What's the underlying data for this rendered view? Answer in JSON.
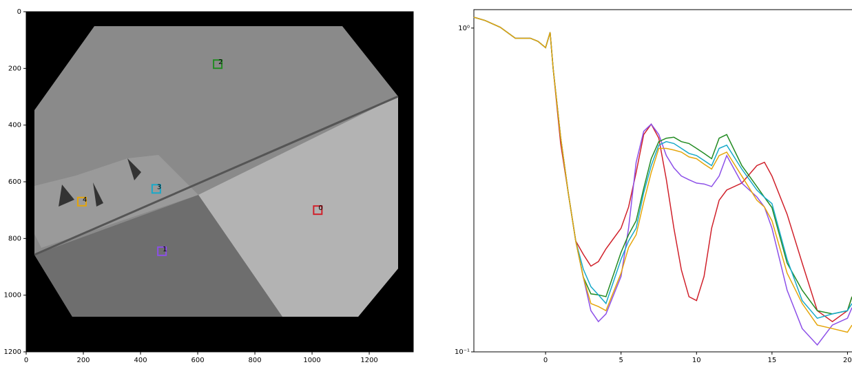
{
  "chart_data": [
    {
      "type": "image",
      "xlim": [
        0,
        1354
      ],
      "ylim": [
        1200,
        0
      ],
      "xticks": [
        0,
        200,
        400,
        600,
        800,
        1000,
        1200
      ],
      "yticks": [
        0,
        200,
        400,
        600,
        800,
        1000,
        1200
      ],
      "regions": [
        {
          "label": "0",
          "x": 1020,
          "y": 700,
          "color": "#d0202a"
        },
        {
          "label": "1",
          "x": 475,
          "y": 845,
          "color": "#8c4fe8"
        },
        {
          "label": "2",
          "x": 670,
          "y": 185,
          "color": "#228b22"
        },
        {
          "label": "3",
          "x": 455,
          "y": 625,
          "color": "#17a9c9"
        },
        {
          "label": "4",
          "x": 195,
          "y": 670,
          "color": "#e5a50a"
        }
      ]
    },
    {
      "type": "line",
      "yscale": "log",
      "xlim": [
        -4.75,
        20.3
      ],
      "ylim": [
        0.1,
        1.14
      ],
      "xticks": [
        0,
        5,
        10,
        15,
        20
      ],
      "yticks": [
        {
          "value": 0.1,
          "label": "10⁻¹"
        },
        {
          "value": 1,
          "label": "10⁰"
        }
      ],
      "x": [
        -4.75,
        -4,
        -3,
        -2,
        -1,
        -0.5,
        0,
        0.3,
        0.5,
        1,
        1.5,
        2,
        2.5,
        3,
        3.5,
        4,
        5,
        5.5,
        6,
        6.5,
        7,
        7.5,
        8,
        8.5,
        9,
        9.5,
        10,
        10.5,
        11,
        11.5,
        12,
        13,
        14,
        14.5,
        15,
        16,
        17,
        18,
        19,
        20,
        20.3
      ],
      "series": [
        {
          "color": "#d0202a",
          "values": [
            1.08,
            1.055,
            1.005,
            0.93,
            0.93,
            0.91,
            0.87,
            0.97,
            0.75,
            0.44,
            0.31,
            0.22,
            0.2,
            0.184,
            0.19,
            0.208,
            0.241,
            0.28,
            0.358,
            0.469,
            0.505,
            0.457,
            0.341,
            0.241,
            0.179,
            0.148,
            0.144,
            0.171,
            0.241,
            0.294,
            0.316,
            0.332,
            0.376,
            0.385,
            0.349,
            0.266,
            0.188,
            0.134,
            0.124,
            0.134,
            0.148
          ]
        },
        {
          "color": "#8c4fe8",
          "values": [
            1.08,
            1.055,
            1.005,
            0.93,
            0.93,
            0.91,
            0.87,
            0.97,
            0.75,
            0.46,
            0.31,
            0.22,
            0.17,
            0.134,
            0.124,
            0.131,
            0.171,
            0.241,
            0.385,
            0.48,
            0.505,
            0.469,
            0.404,
            0.37,
            0.349,
            0.34,
            0.332,
            0.33,
            0.324,
            0.349,
            0.404,
            0.332,
            0.301,
            0.28,
            0.241,
            0.155,
            0.118,
            0.105,
            0.121,
            0.127,
            0.137
          ]
        },
        {
          "color": "#228b22",
          "values": [
            1.08,
            1.055,
            1.005,
            0.93,
            0.93,
            0.91,
            0.87,
            0.97,
            0.75,
            0.46,
            0.31,
            0.22,
            0.17,
            0.151,
            0.15,
            0.148,
            0.203,
            0.23,
            0.254,
            0.32,
            0.395,
            0.446,
            0.457,
            0.46,
            0.446,
            0.44,
            0.425,
            0.41,
            0.395,
            0.457,
            0.469,
            0.376,
            0.324,
            0.3,
            0.279,
            0.188,
            0.155,
            0.134,
            0.131,
            0.134,
            0.148
          ]
        },
        {
          "color": "#17a9c9",
          "values": [
            1.08,
            1.055,
            1.005,
            0.93,
            0.93,
            0.91,
            0.87,
            0.97,
            0.75,
            0.46,
            0.31,
            0.22,
            0.18,
            0.159,
            0.15,
            0.141,
            0.193,
            0.22,
            0.241,
            0.31,
            0.376,
            0.435,
            0.446,
            0.44,
            0.425,
            0.41,
            0.404,
            0.39,
            0.376,
            0.425,
            0.435,
            0.367,
            0.316,
            0.3,
            0.287,
            0.193,
            0.144,
            0.127,
            0.131,
            0.134,
            0.141
          ]
        },
        {
          "color": "#e5a50a",
          "values": [
            1.08,
            1.055,
            1.005,
            0.93,
            0.93,
            0.91,
            0.87,
            0.97,
            0.75,
            0.46,
            0.31,
            0.22,
            0.17,
            0.141,
            0.138,
            0.134,
            0.175,
            0.21,
            0.23,
            0.29,
            0.358,
            0.425,
            0.425,
            0.42,
            0.414,
            0.4,
            0.395,
            0.38,
            0.367,
            0.404,
            0.414,
            0.349,
            0.294,
            0.28,
            0.254,
            0.175,
            0.141,
            0.121,
            0.118,
            0.115,
            0.121
          ]
        }
      ]
    }
  ]
}
